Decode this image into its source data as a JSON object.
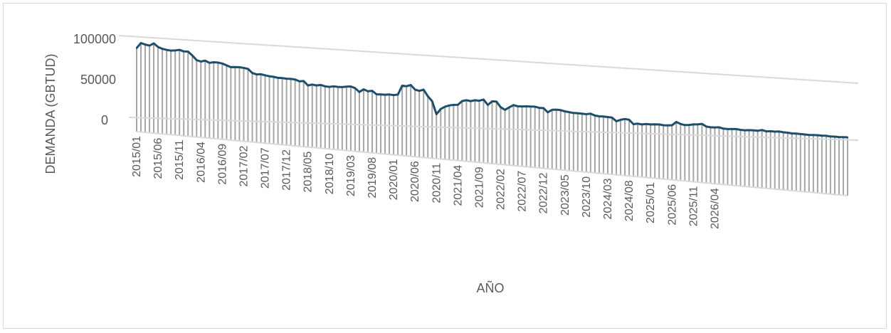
{
  "chart_data": {
    "type": "line",
    "title": "",
    "xlabel": "AÑO",
    "ylabel": "DEMANDA (GBTUD)",
    "ylim": [
      0,
      100000
    ],
    "yticks": [
      "100000",
      "50000",
      "0"
    ],
    "xtick_labels": [
      "2015/01",
      "2015/06",
      "2015/11",
      "2016/04",
      "2016/09",
      "2017/02",
      "2017/07",
      "2017/12",
      "2018/05",
      "2018/10",
      "2019/03",
      "2019/08",
      "2020/01",
      "2020/06",
      "2020/11",
      "2021/04",
      "2021/09",
      "2022/02",
      "2022/07",
      "2022/12",
      "2023/05",
      "2023/10",
      "2024/03",
      "2024/08",
      "2025/01",
      "2025/06",
      "2025/11",
      "2026/04"
    ],
    "series": [
      {
        "name": "",
        "color": "#1f4e6b",
        "x_start": "2015/01",
        "x_end": "2026/04",
        "values": [
          83000,
          89500,
          88000,
          87000,
          90000,
          86000,
          84000,
          83000,
          82500,
          83000,
          84000,
          82500,
          82500,
          78000,
          72500,
          71000,
          72500,
          70000,
          71000,
          71000,
          70000,
          68000,
          66000,
          66500,
          66500,
          66000,
          65000,
          60000,
          58500,
          59000,
          58000,
          57000,
          56500,
          55500,
          55500,
          55000,
          55000,
          54500,
          52500,
          53000,
          47500,
          49000,
          48000,
          49000,
          47500,
          47000,
          48000,
          47500,
          47500,
          48500,
          49000,
          47000,
          42000,
          46000,
          43500,
          44500,
          40000,
          40000,
          40000,
          40500,
          40000,
          41000,
          53500,
          53000,
          55000,
          49000,
          47500,
          49500,
          40500,
          34000,
          16000,
          23500,
          27000,
          29000,
          30000,
          30500,
          36000,
          37500,
          36500,
          38000,
          37500,
          39500,
          32000,
          37500,
          37500,
          29500,
          26000,
          30000,
          33500,
          32000,
          32000,
          32500,
          32500,
          32500,
          31000,
          31000,
          25000,
          29000,
          29500,
          29000,
          27500,
          26500,
          25500,
          25500,
          25000,
          24500,
          25500,
          23000,
          22000,
          22000,
          21500,
          21000,
          15500,
          18000,
          19500,
          18500,
          12000,
          13000,
          12000,
          13000,
          12500,
          13000,
          13000,
          12000,
          12000,
          12500,
          18000,
          15000,
          13500,
          14000,
          15000,
          15500,
          16500,
          12500,
          11500,
          11500,
          12000,
          10000,
          9500,
          10000,
          10000,
          9000,
          8500,
          9000,
          9000,
          8500,
          10000,
          8000,
          8500,
          8000,
          8500,
          7500,
          7000,
          6000,
          6000,
          5500,
          5000,
          4500,
          4500,
          4500,
          4000,
          4000,
          3000,
          3000,
          2500,
          2500,
          2500
        ]
      }
    ]
  }
}
